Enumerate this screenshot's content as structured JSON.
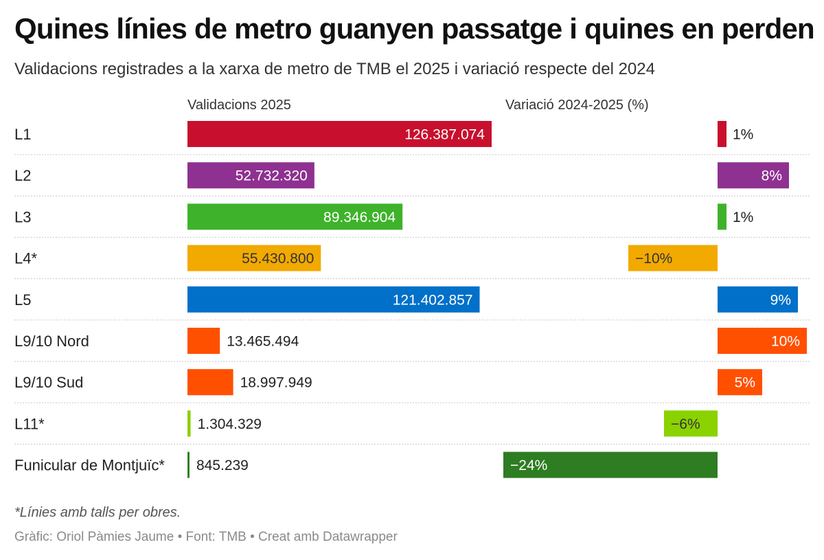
{
  "chart_data": {
    "type": "bar",
    "title": "Quines línies de metro guanyen passatge i quines en perden",
    "subtitle": "Validacions registrades a la xarxa de metro de TMB el 2025 i variació respecte del 2024",
    "column_headers": {
      "validations": "Validacions 2025",
      "variation": "Variació 2024-2025 (%)"
    },
    "categories": [
      "L1",
      "L2",
      "L3",
      "L4*",
      "L5",
      "L9/10 Nord",
      "L9/10 Sud",
      "L11*",
      "Funicular de Montjuïc*"
    ],
    "series": [
      {
        "name": "Validacions 2025",
        "values": [
          126387074,
          52732320,
          89346904,
          55430800,
          121402857,
          13465494,
          18997949,
          1304329,
          845239
        ],
        "labels": [
          "126.387.074",
          "52.732.320",
          "89.346.904",
          "55.430.800",
          "121.402.857",
          "13.465.494",
          "18.997.949",
          "1.304.329",
          "845.239"
        ]
      },
      {
        "name": "Variació 2024-2025 (%)",
        "values": [
          1,
          8,
          1,
          -10,
          9,
          10,
          5,
          -6,
          -24
        ],
        "labels": [
          "1%",
          "8%",
          "1%",
          "−10%",
          "9%",
          "10%",
          "5%",
          "−6%",
          "−24%"
        ]
      }
    ],
    "colors": [
      "#c8102e",
      "#8e3191",
      "#3fb22b",
      "#f2a900",
      "#0070c8",
      "#ff5000",
      "#ff5000",
      "#8ad200",
      "#2e7d22"
    ],
    "validations_range": [
      0,
      126387074
    ],
    "variation_range": [
      -24,
      10
    ]
  },
  "notes": {
    "footnote": "*Línies amb talls per obres.",
    "credits": "Gràfic: Oriol Pàmies Jaume • Font: TMB • Creat amb Datawrapper"
  }
}
